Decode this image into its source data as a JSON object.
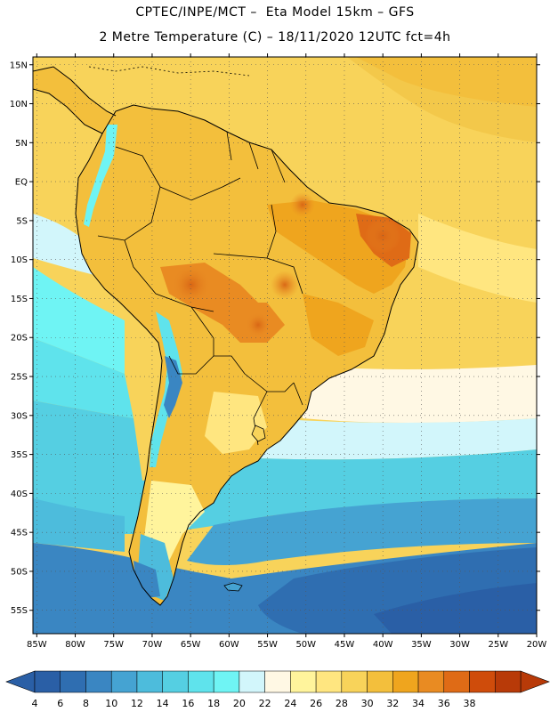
{
  "header": {
    "title_line1": "CPTEC/INPE/MCT –  Eta Model 15km – GFS",
    "title_line2": "2 Metre Temperature (C) – 18/11/2020 12UTC fct=4h"
  },
  "map": {
    "lat_labels": [
      "15N",
      "10N",
      "5N",
      "EQ",
      "5S",
      "10S",
      "15S",
      "20S",
      "25S",
      "30S",
      "35S",
      "40S",
      "45S",
      "50S",
      "55S"
    ],
    "lon_labels": [
      "85W",
      "80W",
      "75W",
      "70W",
      "65W",
      "60W",
      "55W",
      "50W",
      "45W",
      "40W",
      "35W",
      "30W",
      "25W",
      "20W"
    ],
    "lat_values": [
      15,
      10,
      5,
      0,
      -5,
      -10,
      -15,
      -20,
      -25,
      -30,
      -35,
      -40,
      -45,
      -50,
      -55
    ],
    "lon_values": [
      -85,
      -80,
      -75,
      -70,
      -65,
      -60,
      -55,
      -50,
      -45,
      -40,
      -35,
      -30,
      -25,
      -20
    ],
    "extent": {
      "lon_min": -85.5,
      "lon_max": -20.0,
      "lat_min": -58.0,
      "lat_max": 16.0
    }
  },
  "colorbar": {
    "labels": [
      "4",
      "6",
      "8",
      "10",
      "12",
      "14",
      "16",
      "18",
      "20",
      "22",
      "24",
      "26",
      "28",
      "30",
      "32",
      "34",
      "36",
      "38"
    ],
    "colors": [
      "#2a5fa6",
      "#2f6eb1",
      "#3a86c2",
      "#45a3d2",
      "#4dbcdc",
      "#55cfe2",
      "#5fe3ec",
      "#6ff4f4",
      "#d2f6fb",
      "#fff8e4",
      "#fff49c",
      "#ffe680",
      "#f8d35a",
      "#f3bf3c",
      "#efa51e",
      "#e98b22",
      "#df6b16",
      "#cf4c0b",
      "#b83a08"
    ],
    "under_color": "#2a5fa6",
    "over_color": "#b83a08"
  }
}
